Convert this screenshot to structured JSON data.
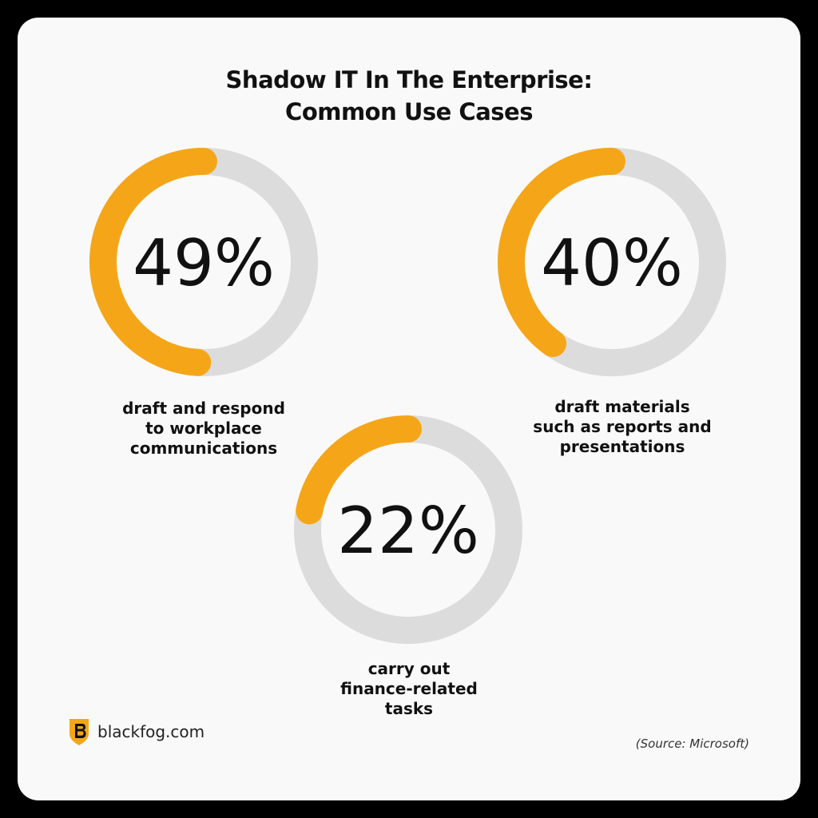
{
  "chart_data": {
    "type": "donut",
    "title": [
      "Shadow IT In The Enterprise:",
      "Common Use Cases"
    ],
    "items": [
      {
        "value": 49,
        "value_label": "49%",
        "label": [
          "draft and respond",
          "to workplace",
          "communications"
        ]
      },
      {
        "value": 40,
        "value_label": "40%",
        "label": [
          "draft materials",
          "such as reports and",
          "presentations"
        ]
      },
      {
        "value": 22,
        "value_label": "22%",
        "label": [
          "carry out",
          "finance-related",
          "tasks"
        ]
      }
    ],
    "colors": {
      "filled": "#f5a618",
      "track": "#dcdcdc",
      "text": "#111111"
    }
  },
  "footer": {
    "brand": "blackfog.com",
    "logo_icon": "blackfog-shield-logo",
    "source": "(Source: Microsoft)"
  }
}
